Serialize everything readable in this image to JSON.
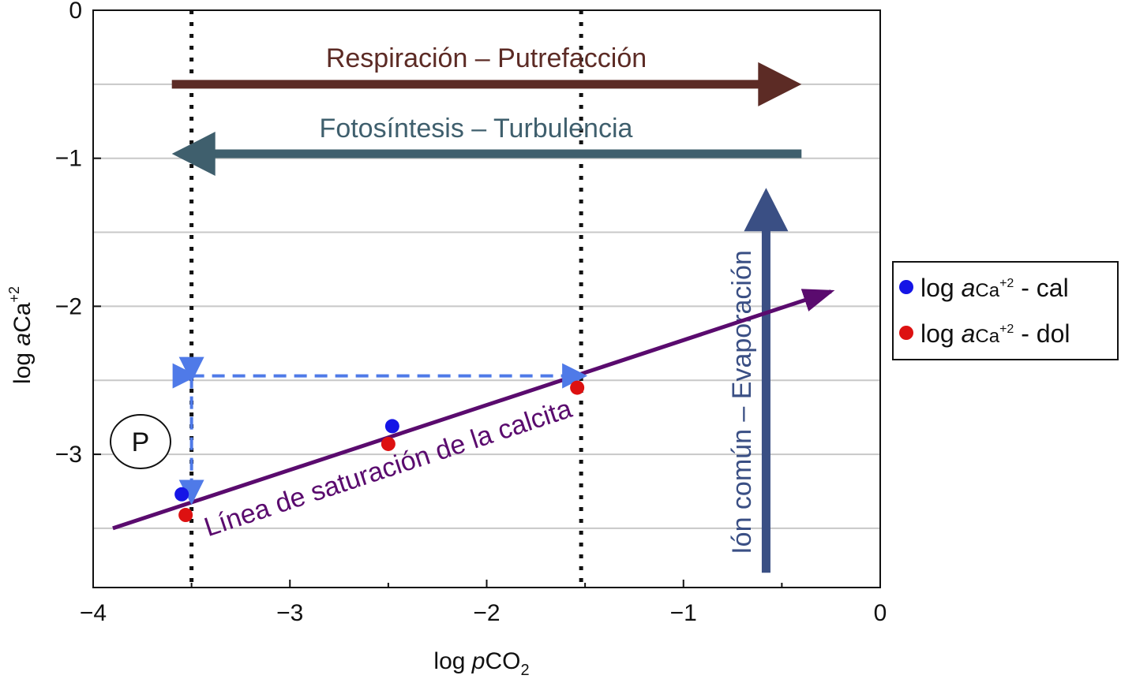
{
  "chart_data": {
    "type": "scatter",
    "xlabel_prefix": "log ",
    "xlabel_var": "p",
    "xlabel_main": "CO",
    "xlabel_sub": "2",
    "ylabel_prefix": "log ",
    "ylabel_var": "a",
    "ylabel_main": "Ca",
    "ylabel_sup": "+2",
    "xlim": [
      -4,
      0
    ],
    "ylim": [
      -3.9,
      0
    ],
    "x_ticks": [
      -4,
      -3,
      -2,
      -1,
      0
    ],
    "x_tick_labels": [
      "−4",
      "−3",
      "−2",
      "−1",
      "0"
    ],
    "y_ticks": [
      0,
      -1,
      -2,
      -3
    ],
    "y_tick_labels": [
      "0",
      "−1",
      "−2",
      "−3"
    ],
    "y_gridlines": [
      -0.5,
      -1,
      -1.5,
      -2,
      -2.5,
      -3,
      -3.5
    ],
    "series": [
      {
        "legend_prefix": "log ",
        "legend_var": "a",
        "legend_ion": "Ca",
        "legend_sup": "+2",
        "legend_suffix": " - cal",
        "color": "#1515e6",
        "points": [
          {
            "x": -3.55,
            "y": -3.27
          },
          {
            "x": -2.48,
            "y": -2.81
          }
        ]
      },
      {
        "legend_prefix": "log ",
        "legend_var": "a",
        "legend_ion": "Ca",
        "legend_sup": "+2",
        "legend_suffix": " - dol",
        "color": "#dd1111",
        "points": [
          {
            "x": -3.53,
            "y": -3.41
          },
          {
            "x": -2.5,
            "y": -2.93
          },
          {
            "x": -1.54,
            "y": -2.55
          }
        ]
      }
    ],
    "vertical_dotted_lines": [
      -3.5,
      -1.52
    ],
    "saturation_line": {
      "label": "Línea de saturación de la calcita",
      "color": "#5a0b6e",
      "from": [
        -3.9,
        -3.5
      ],
      "to": [
        -0.25,
        -1.9
      ]
    },
    "dashed_arrows": {
      "color": "#4f7ae8",
      "vertical": {
        "x": -3.5,
        "from_y": -2.47,
        "to_y": -3.3
      },
      "horizontal": {
        "y": -2.47,
        "from_x": -3.5,
        "to_x": -1.52
      }
    },
    "arrows": [
      {
        "label": "Respiración – Putrefacción",
        "color": "#5c2b25",
        "from": [
          -3.6,
          -0.5
        ],
        "to": [
          -0.4,
          -0.5
        ]
      },
      {
        "label": "Fotosíntesis – Turbulencia",
        "color": "#3f5f6d",
        "from": [
          -0.4,
          -0.97
        ],
        "to": [
          -3.6,
          -0.97
        ]
      },
      {
        "label": "Ión común – Evaporación",
        "color": "#3a4f84",
        "from": [
          -0.58,
          -3.8
        ],
        "to": [
          -0.58,
          -1.2
        ]
      }
    ],
    "point_label": "P",
    "legend_position": "right"
  }
}
